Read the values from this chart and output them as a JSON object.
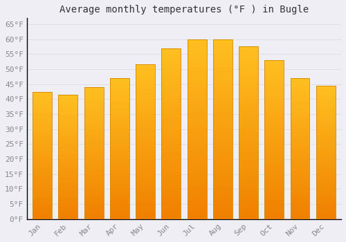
{
  "title": "Average monthly temperatures (°F ) in Bugle",
  "months": [
    "Jan",
    "Feb",
    "Mar",
    "Apr",
    "May",
    "Jun",
    "Jul",
    "Aug",
    "Sep",
    "Oct",
    "Nov",
    "Dec"
  ],
  "values": [
    42.5,
    41.5,
    44.0,
    47.0,
    51.5,
    57.0,
    60.0,
    60.0,
    57.5,
    53.0,
    47.0,
    44.5
  ],
  "bar_color_top": "#FFC020",
  "bar_color_bottom": "#F08000",
  "bar_edge_color": "#D08800",
  "background_color": "#F0EEF5",
  "grid_color": "#DDDDDD",
  "ylim": [
    0,
    67
  ],
  "ytick_values": [
    0,
    5,
    10,
    15,
    20,
    25,
    30,
    35,
    40,
    45,
    50,
    55,
    60,
    65
  ],
  "title_fontsize": 10,
  "tick_fontsize": 8,
  "tick_color": "#888888",
  "font_family": "monospace"
}
